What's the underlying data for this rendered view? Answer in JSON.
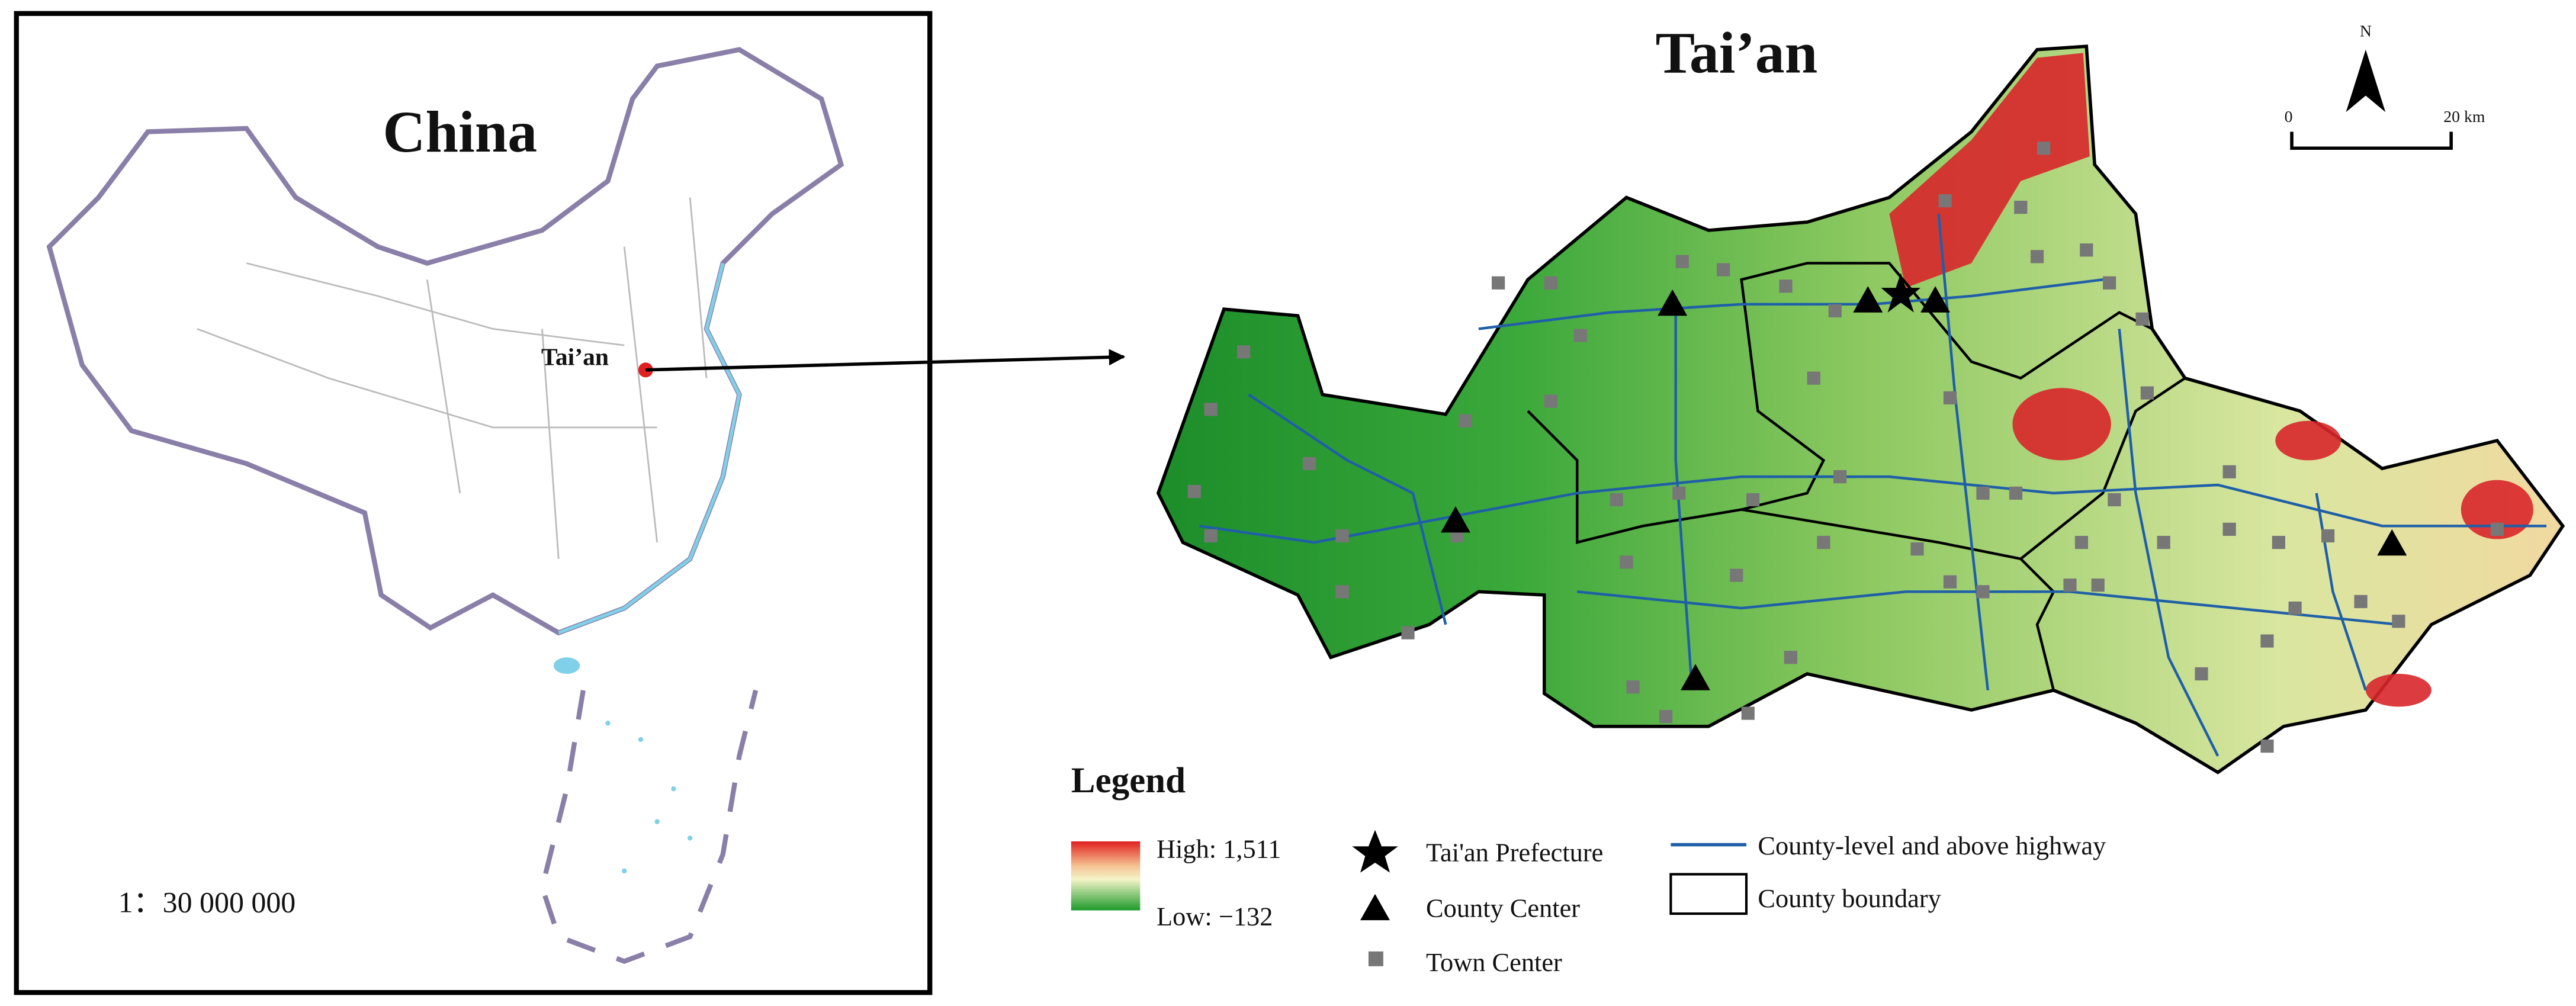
{
  "china_panel": {
    "title": "China",
    "city_label": "Tai’an",
    "scale": "1：30 000 000"
  },
  "taian_panel": {
    "title": "Tai’an",
    "north": "N",
    "scale_start": "0",
    "scale_end": "20 km"
  },
  "legend": {
    "title": "Legend",
    "high": "High: 1,511",
    "low": "Low: −132",
    "items": [
      "Tai'an Prefecture",
      "County Center",
      "Town Center",
      "County-level and above highway",
      "County boundary"
    ]
  }
}
